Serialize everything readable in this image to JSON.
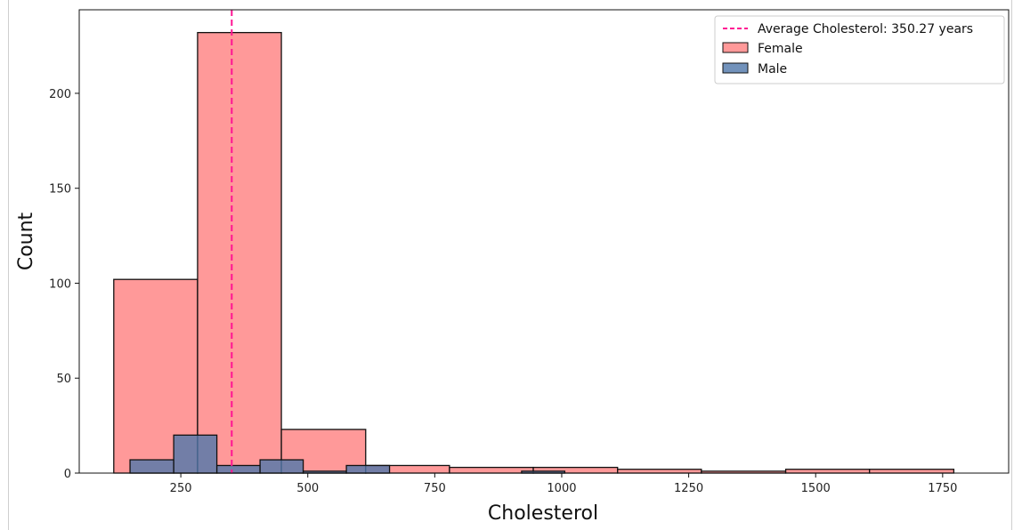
{
  "chart_data": {
    "type": "histogram",
    "xlabel": "Cholesterol",
    "ylabel": "Count",
    "xlim": [
      50,
      1880
    ],
    "ylim": [
      0,
      244
    ],
    "x_ticks": [
      250,
      500,
      750,
      1000,
      1250,
      1500,
      1750
    ],
    "y_ticks": [
      0,
      50,
      100,
      150,
      200
    ],
    "grid": false,
    "legend_position": "top-right",
    "average_line": {
      "label": "Average Cholesterol: 350.27 years",
      "value": 350.27,
      "color": "#ff1493"
    },
    "series": [
      {
        "name": "Female",
        "color": "#ff8080",
        "bins": [
          {
            "x0": 118,
            "x1": 283,
            "count": 102
          },
          {
            "x0": 283,
            "x1": 448,
            "count": 232
          },
          {
            "x0": 448,
            "x1": 614,
            "count": 23
          },
          {
            "x0": 614,
            "x1": 779,
            "count": 4
          },
          {
            "x0": 779,
            "x1": 944,
            "count": 3
          },
          {
            "x0": 944,
            "x1": 1110,
            "count": 3
          },
          {
            "x0": 1110,
            "x1": 1275,
            "count": 2
          },
          {
            "x0": 1275,
            "x1": 1441,
            "count": 1
          },
          {
            "x0": 1441,
            "x1": 1606,
            "count": 2
          },
          {
            "x0": 1606,
            "x1": 1772,
            "count": 2
          }
        ]
      },
      {
        "name": "Male",
        "color": "#4f77aa",
        "bins": [
          {
            "x0": 150,
            "x1": 236,
            "count": 7
          },
          {
            "x0": 236,
            "x1": 321,
            "count": 20
          },
          {
            "x0": 321,
            "x1": 406,
            "count": 4
          },
          {
            "x0": 406,
            "x1": 491,
            "count": 7
          },
          {
            "x0": 491,
            "x1": 576,
            "count": 1
          },
          {
            "x0": 576,
            "x1": 661,
            "count": 4
          },
          {
            "x0": 921,
            "x1": 1006,
            "count": 1
          }
        ]
      }
    ]
  }
}
